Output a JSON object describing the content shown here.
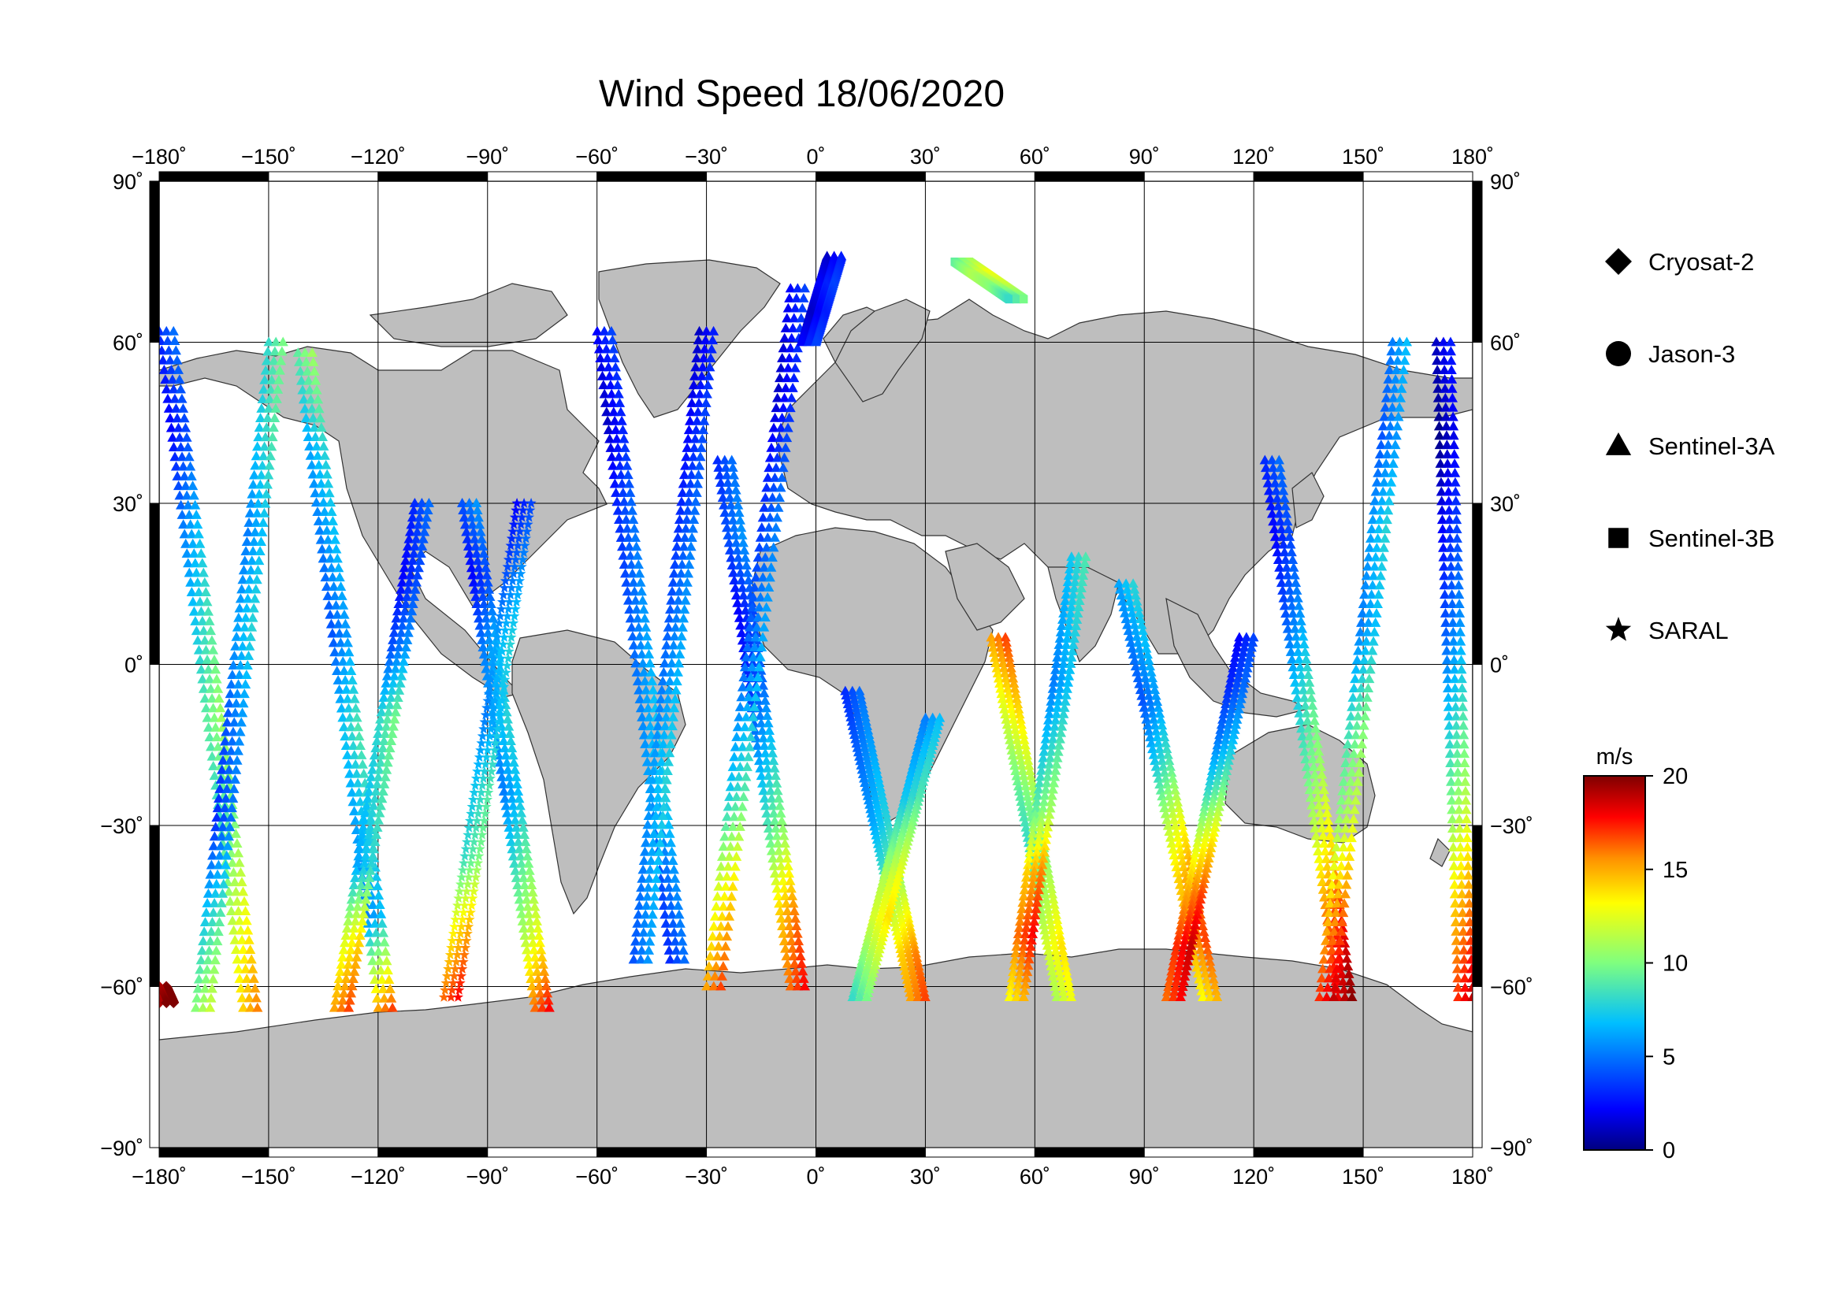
{
  "title": "Wind Speed 18/06/2020",
  "colors": {
    "land": "#bebebe",
    "ocean": "#ffffff",
    "grid": "#000000",
    "frame_dark": "#000000"
  },
  "map": {
    "projection": "equirectangular",
    "lon_range": [
      -180,
      180
    ],
    "lat_range": [
      -90,
      90
    ],
    "lon_ticks": [
      {
        "value": -180,
        "label": "−180˚"
      },
      {
        "value": -150,
        "label": "−150˚"
      },
      {
        "value": -120,
        "label": "−120˚"
      },
      {
        "value": -90,
        "label": "−90˚"
      },
      {
        "value": -60,
        "label": "−60˚"
      },
      {
        "value": -30,
        "label": "−30˚"
      },
      {
        "value": 0,
        "label": "0˚"
      },
      {
        "value": 30,
        "label": "30˚"
      },
      {
        "value": 60,
        "label": "60˚"
      },
      {
        "value": 90,
        "label": "90˚"
      },
      {
        "value": 120,
        "label": "120˚"
      },
      {
        "value": 150,
        "label": "150˚"
      },
      {
        "value": 180,
        "label": "180˚"
      }
    ],
    "lat_ticks": [
      {
        "value": 90,
        "left": "90˚",
        "right": "90˚"
      },
      {
        "value": 60,
        "left": "60˚",
        "right": "60˚"
      },
      {
        "value": 30,
        "left": "30˚",
        "right": "30˚"
      },
      {
        "value": 0,
        "left": "0˚",
        "right": "0˚"
      },
      {
        "value": -30,
        "left": "−30˚",
        "right": "−30˚"
      },
      {
        "value": -60,
        "left": "−60˚",
        "right": "−60˚"
      },
      {
        "value": -90,
        "left": "−90˚",
        "right": "−90˚"
      }
    ]
  },
  "legend": {
    "items": [
      {
        "symbol": "diamond",
        "label": "Cryosat-2"
      },
      {
        "symbol": "circle",
        "label": "Jason-3"
      },
      {
        "symbol": "triangle",
        "label": "Sentinel-3A"
      },
      {
        "symbol": "square",
        "label": "Sentinel-3B"
      },
      {
        "symbol": "star",
        "label": "SARAL"
      }
    ]
  },
  "colorbar": {
    "unit": "m/s",
    "min": 0,
    "max": 20,
    "ticks": [
      {
        "value": 20,
        "label": "20"
      },
      {
        "value": 15,
        "label": "15"
      },
      {
        "value": 10,
        "label": "10"
      },
      {
        "value": 5,
        "label": "5"
      },
      {
        "value": 0,
        "label": "0"
      }
    ]
  },
  "chart_data": {
    "type": "scatter",
    "title": "Wind Speed 18/06/2020",
    "x_axis": "longitude",
    "y_axis": "latitude",
    "xlim": [
      -180,
      180
    ],
    "ylim": [
      -90,
      90
    ],
    "color_variable": "wind speed (m/s)",
    "color_range": [
      0,
      20
    ],
    "grid": true,
    "legend_position": "right",
    "tracks": [
      {
        "satellite": "Sentinel-3A",
        "marker": "triangle",
        "start": [
          -178,
          62
        ],
        "end": [
          -155,
          -64
        ],
        "speed_profile": [
          4,
          3,
          6,
          8,
          10,
          9,
          12,
          15
        ]
      },
      {
        "satellite": "Sentinel-3A",
        "marker": "triangle",
        "start": [
          -148,
          60
        ],
        "end": [
          -168,
          -64
        ],
        "speed_profile": [
          9,
          8,
          6,
          7,
          5,
          4,
          8,
          11
        ]
      },
      {
        "satellite": "Sentinel-3A",
        "marker": "triangle",
        "start": [
          -140,
          58
        ],
        "end": [
          -118,
          -64
        ],
        "speed_profile": [
          10,
          7,
          6,
          5,
          8,
          7,
          6,
          16
        ]
      },
      {
        "satellite": "Sentinel-3A",
        "marker": "triangle",
        "start": [
          -108,
          30
        ],
        "end": [
          -130,
          -64
        ],
        "speed_profile": [
          4,
          3,
          5,
          9,
          8,
          7,
          13,
          16
        ]
      },
      {
        "satellite": "Sentinel-3A",
        "marker": "triangle",
        "start": [
          -95,
          30
        ],
        "end": [
          -75,
          -64
        ],
        "speed_profile": [
          5,
          3,
          6,
          7,
          6,
          9,
          12,
          17
        ]
      },
      {
        "satellite": "SARAL",
        "marker": "star",
        "start": [
          -80,
          30
        ],
        "end": [
          -100,
          -62
        ],
        "speed_profile": [
          3,
          5,
          7,
          6,
          8,
          9,
          14,
          17
        ]
      },
      {
        "satellite": "Sentinel-3A",
        "marker": "triangle",
        "start": [
          -58,
          62
        ],
        "end": [
          -38,
          -55
        ],
        "speed_profile": [
          3,
          2,
          4,
          5,
          6,
          7,
          5,
          4
        ]
      },
      {
        "satellite": "Sentinel-3A",
        "marker": "triangle",
        "start": [
          -30,
          62
        ],
        "end": [
          -48,
          -55
        ],
        "speed_profile": [
          2,
          3,
          4,
          5,
          6,
          7,
          6,
          5
        ]
      },
      {
        "satellite": "Sentinel-3A",
        "marker": "triangle",
        "start": [
          -25,
          38
        ],
        "end": [
          -5,
          -60
        ],
        "speed_profile": [
          4,
          5,
          3,
          4,
          7,
          10,
          15,
          17
        ]
      },
      {
        "satellite": "Sentinel-3A",
        "marker": "triangle",
        "start": [
          -5,
          70
        ],
        "end": [
          -28,
          -60
        ],
        "speed_profile": [
          3,
          2,
          4,
          5,
          6,
          8,
          13,
          16
        ]
      },
      {
        "satellite": "Sentinel-3A",
        "marker": "triangle",
        "start": [
          10,
          -5
        ],
        "end": [
          28,
          -62
        ],
        "speed_profile": [
          4,
          5,
          6,
          7,
          9,
          12,
          15,
          16
        ]
      },
      {
        "satellite": "Sentinel-3A",
        "marker": "triangle",
        "start": [
          32,
          -10
        ],
        "end": [
          12,
          -62
        ],
        "speed_profile": [
          6,
          7,
          8,
          10,
          12,
          13,
          11,
          9
        ]
      },
      {
        "satellite": "Sentinel-3A",
        "marker": "triangle",
        "start": [
          50,
          5
        ],
        "end": [
          68,
          -62
        ],
        "speed_profile": [
          16,
          14,
          12,
          10,
          9,
          11,
          13,
          12
        ]
      },
      {
        "satellite": "Sentinel-3A",
        "marker": "triangle",
        "start": [
          72,
          20
        ],
        "end": [
          55,
          -62
        ],
        "speed_profile": [
          8,
          7,
          6,
          8,
          10,
          15,
          17,
          14
        ]
      },
      {
        "satellite": "Sentinel-3A",
        "marker": "triangle",
        "start": [
          85,
          15
        ],
        "end": [
          108,
          -62
        ],
        "speed_profile": [
          7,
          6,
          5,
          8,
          12,
          15,
          16,
          14
        ]
      },
      {
        "satellite": "Sentinel-3A",
        "marker": "triangle",
        "start": [
          118,
          5
        ],
        "end": [
          98,
          -62
        ],
        "speed_profile": [
          3,
          4,
          6,
          9,
          13,
          16,
          18,
          17
        ]
      },
      {
        "satellite": "Sentinel-3A",
        "marker": "triangle",
        "start": [
          125,
          38
        ],
        "end": [
          145,
          -62
        ],
        "speed_profile": [
          4,
          3,
          5,
          8,
          10,
          13,
          17,
          19
        ]
      },
      {
        "satellite": "Sentinel-3A",
        "marker": "triangle",
        "start": [
          160,
          60
        ],
        "end": [
          140,
          -62
        ],
        "speed_profile": [
          6,
          5,
          7,
          6,
          9,
          11,
          15,
          18
        ]
      },
      {
        "satellite": "Sentinel-3A",
        "marker": "triangle",
        "start": [
          172,
          60
        ],
        "end": [
          178,
          -62
        ],
        "speed_profile": [
          2,
          1,
          3,
          5,
          8,
          11,
          15,
          18
        ]
      },
      {
        "satellite": "Sentinel-3B",
        "marker": "square",
        "start": [
          40,
          75
        ],
        "end": [
          55,
          68
        ],
        "speed_profile": [
          10,
          12,
          11,
          9
        ]
      },
      {
        "satellite": "Sentinel-3A",
        "marker": "triangle",
        "start": [
          5,
          76
        ],
        "end": [
          -2,
          60
        ],
        "speed_profile": [
          2,
          3,
          2,
          3
        ]
      },
      {
        "satellite": "Cryosat-2",
        "marker": "diamond",
        "start": [
          -180,
          -60
        ],
        "end": [
          -178,
          -63
        ],
        "speed_profile": [
          19,
          20
        ]
      }
    ]
  }
}
